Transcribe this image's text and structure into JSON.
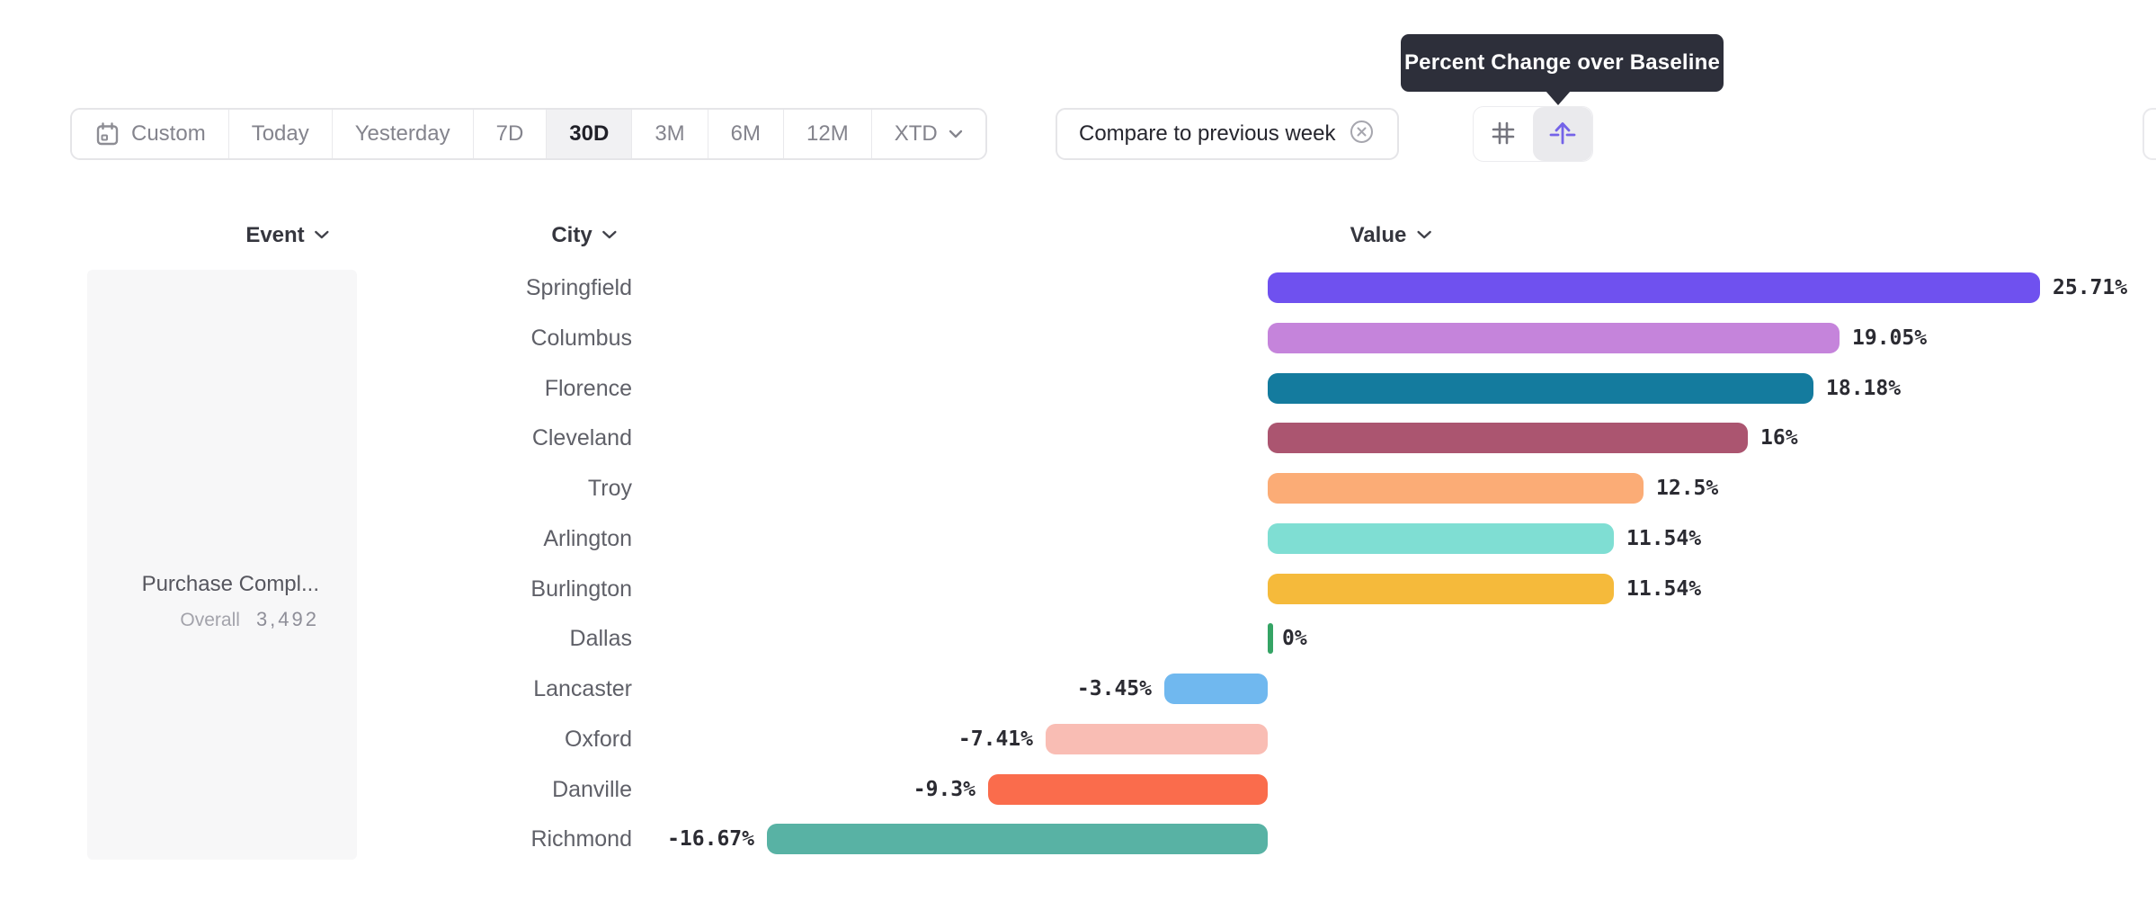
{
  "tooltip": {
    "text": "Percent Change over Baseline"
  },
  "toolbar": {
    "date_ranges": [
      {
        "label": "Custom",
        "icon": "calendar-icon",
        "selected": false
      },
      {
        "label": "Today",
        "icon": null,
        "selected": false
      },
      {
        "label": "Yesterday",
        "icon": null,
        "selected": false
      },
      {
        "label": "7D",
        "icon": null,
        "selected": false
      },
      {
        "label": "30D",
        "icon": null,
        "selected": true
      },
      {
        "label": "3M",
        "icon": null,
        "selected": false
      },
      {
        "label": "6M",
        "icon": null,
        "selected": false
      },
      {
        "label": "12M",
        "icon": null,
        "selected": false
      },
      {
        "label": "XTD",
        "icon": "chevron-down-icon",
        "selected": false
      }
    ],
    "compare_chip": {
      "label": "Compare to previous week",
      "remove_icon": "x-circle-icon"
    },
    "view_toggle": {
      "options": [
        {
          "icon": "grid-hash-icon",
          "selected": false
        },
        {
          "icon": "baseline-arrow-icon",
          "selected": true
        }
      ],
      "accent_color": "#7463E8"
    }
  },
  "columns": {
    "event": "Event",
    "city": "City",
    "value": "Value"
  },
  "event_panel": {
    "title": "Purchase Compl...",
    "overall_label": "Overall",
    "overall_value": "3,492"
  },
  "chart_data": {
    "type": "bar",
    "orientation": "horizontal",
    "title": "Percent Change over Baseline",
    "unit": "%",
    "baseline": 0,
    "xlim": [
      -16.67,
      25.71
    ],
    "categories": [
      "Springfield",
      "Columbus",
      "Florence",
      "Cleveland",
      "Troy",
      "Arlington",
      "Burlington",
      "Dallas",
      "Lancaster",
      "Oxford",
      "Danville",
      "Richmond"
    ],
    "values": [
      25.71,
      19.05,
      18.18,
      16,
      12.5,
      11.54,
      11.54,
      0,
      -3.45,
      -7.41,
      -9.3,
      -16.67
    ],
    "rows": [
      {
        "city": "Springfield",
        "value": 25.71,
        "label": "25.71%",
        "color": "#6F51EF"
      },
      {
        "city": "Columbus",
        "value": 19.05,
        "label": "19.05%",
        "color": "#C584DB"
      },
      {
        "city": "Florence",
        "value": 18.18,
        "label": "18.18%",
        "color": "#147B9E"
      },
      {
        "city": "Cleveland",
        "value": 16,
        "label": "16%",
        "color": "#AB5570"
      },
      {
        "city": "Troy",
        "value": 12.5,
        "label": "12.5%",
        "color": "#FBAC76"
      },
      {
        "city": "Arlington",
        "value": 11.54,
        "label": "11.54%",
        "color": "#7FDED3"
      },
      {
        "city": "Burlington",
        "value": 11.54,
        "label": "11.54%",
        "color": "#F5BA3B"
      },
      {
        "city": "Dallas",
        "value": 0,
        "label": "0%",
        "color": "#35A465"
      },
      {
        "city": "Lancaster",
        "value": -3.45,
        "label": "-3.45%",
        "color": "#70B8EF"
      },
      {
        "city": "Oxford",
        "value": -7.41,
        "label": "-7.41%",
        "color": "#F9BDB4"
      },
      {
        "city": "Danville",
        "value": -9.3,
        "label": "-9.3%",
        "color": "#FA6C4C"
      },
      {
        "city": "Richmond",
        "value": -16.67,
        "label": "-16.67%",
        "color": "#58B2A4"
      }
    ]
  }
}
